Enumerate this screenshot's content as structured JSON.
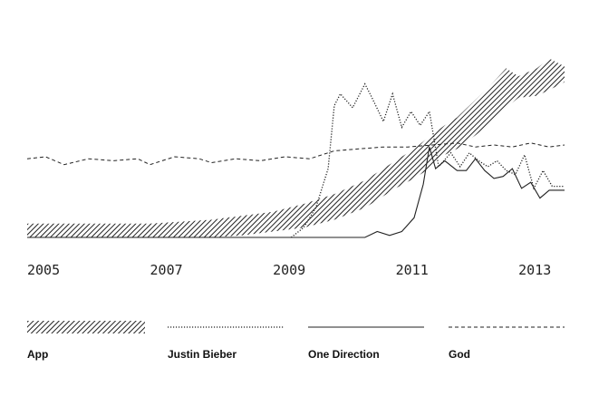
{
  "chart_data": {
    "type": "line",
    "title": "",
    "xlabel": "",
    "ylabel": "",
    "xlim": [
      2005,
      2013.75
    ],
    "ylim": [
      0,
      100
    ],
    "grid": false,
    "legend_position": "bottom",
    "x_ticks": [
      "2005",
      "2007",
      "2009",
      "2011",
      "2013"
    ],
    "series": [
      {
        "name": "App",
        "style": "hatched-band",
        "x": [
          2005,
          2006,
          2007,
          2007.5,
          2008,
          2008.5,
          2009,
          2009.5,
          2010,
          2010.5,
          2011,
          2011.3,
          2011.5,
          2011.8,
          2012,
          2012.3,
          2012.5,
          2012.8,
          2013,
          2013.3,
          2013.5,
          2013.75
        ],
        "lower": [
          0,
          0,
          0,
          0,
          0,
          1,
          3,
          5,
          9,
          15,
          25,
          30,
          34,
          42,
          45,
          52,
          57,
          66,
          71,
          72,
          75,
          79
        ],
        "upper": [
          7,
          7,
          7,
          8,
          9,
          11,
          13,
          17,
          22,
          29,
          39,
          45,
          50,
          57,
          61,
          70,
          76,
          86,
          82,
          86,
          91,
          87
        ]
      },
      {
        "name": "Justin Bieber",
        "style": "dotted",
        "x": [
          2009.3,
          2009.5,
          2009.7,
          2009.9,
          2010,
          2010.1,
          2010.3,
          2010.5,
          2010.6,
          2010.8,
          2010.95,
          2011.1,
          2011.25,
          2011.4,
          2011.55,
          2011.7,
          2011.9,
          2012.05,
          2012.2,
          2012.35,
          2012.5,
          2012.65,
          2012.8,
          2012.95,
          2013.1,
          2013.25,
          2013.4,
          2013.55,
          2013.75
        ],
        "y": [
          0,
          5,
          15,
          35,
          67,
          73,
          66,
          78,
          72,
          59,
          73,
          56,
          64,
          57,
          64,
          36,
          43,
          36,
          43,
          39,
          36,
          39,
          34,
          32,
          42,
          25,
          34,
          26,
          26
        ]
      },
      {
        "name": "One Direction",
        "style": "solid",
        "x": [
          2005,
          2010,
          2010.5,
          2010.7,
          2010.9,
          2011.1,
          2011.3,
          2011.45,
          2011.55,
          2011.65,
          2011.8,
          2012,
          2012.15,
          2012.3,
          2012.45,
          2012.6,
          2012.75,
          2012.9,
          2013.05,
          2013.2,
          2013.35,
          2013.5,
          2013.75
        ],
        "y": [
          0,
          0,
          0,
          3,
          1,
          3,
          10,
          27,
          46,
          35,
          39,
          34,
          34,
          40,
          34,
          30,
          31,
          35,
          25,
          28,
          20,
          24,
          24
        ]
      },
      {
        "name": "God",
        "style": "dashed",
        "x": [
          2005,
          2005.3,
          2005.6,
          2006,
          2006.4,
          2006.8,
          2007,
          2007.4,
          2007.8,
          2008,
          2008.4,
          2008.8,
          2009.2,
          2009.6,
          2010,
          2010.4,
          2010.8,
          2011.2,
          2011.6,
          2012,
          2012.3,
          2012.6,
          2012.9,
          2013.2,
          2013.5,
          2013.75
        ],
        "y": [
          40,
          41,
          37,
          40,
          39,
          40,
          37,
          41,
          40,
          38,
          40,
          39,
          41,
          40,
          44,
          45,
          46,
          46,
          47,
          48,
          46,
          47,
          46,
          48,
          46,
          47
        ]
      }
    ]
  }
}
